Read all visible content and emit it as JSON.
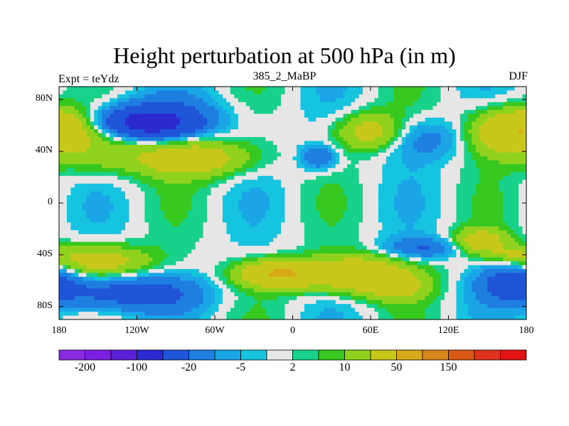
{
  "header": {
    "title": "Height perturbation at 500 hPa (in m)",
    "left_label": "Expt = teYdz",
    "center_label": "385_2_MaBP",
    "right_label": "DJF"
  },
  "chart_data": {
    "type": "heatmap",
    "title": "Height perturbation at 500 hPa (in m)",
    "subtitle": "385_2_MaBP",
    "left_string": "Expt = teYdz",
    "right_string": "DJF",
    "x_ticks": [
      "180",
      "120W",
      "60W",
      "0",
      "60E",
      "120E",
      "180"
    ],
    "x_tick_lon": [
      -180,
      -120,
      -60,
      0,
      60,
      120,
      180
    ],
    "y_ticks": [
      "80N",
      "40N",
      "0",
      "40S",
      "80S"
    ],
    "y_tick_lat": [
      80,
      40,
      0,
      -40,
      -80
    ],
    "xlim": [
      -180,
      180
    ],
    "ylim": [
      -90,
      90
    ],
    "colorbar": {
      "colors": [
        "#8a2be2",
        "#7a1fe0",
        "#5a1fd6",
        "#2a2ad0",
        "#1f55d8",
        "#1e7fe0",
        "#1aa6e6",
        "#16c4e0",
        "#e6e6e6",
        "#19d28a",
        "#36c81e",
        "#8fd21e",
        "#c8c81a",
        "#d8a81a",
        "#d8861a",
        "#d85a14",
        "#e0321e",
        "#e01414"
      ],
      "tick_labels": [
        "-200",
        "-100",
        "-20",
        "-5",
        "2",
        "10",
        "50",
        "150"
      ],
      "tick_index": [
        1,
        3,
        5,
        7,
        9,
        11,
        13,
        15
      ]
    },
    "field": {
      "description_levels": "contour levels in m",
      "blobs": [
        {
          "lon": -105,
          "lat": 65,
          "w": 55,
          "h": 18,
          "v": -20
        },
        {
          "lon": -110,
          "lat": 62,
          "w": 30,
          "h": 10,
          "v": -60
        },
        {
          "lon": -150,
          "lat": 40,
          "w": 30,
          "h": 18,
          "v": 15
        },
        {
          "lon": -80,
          "lat": 35,
          "w": 45,
          "h": 14,
          "v": 35
        },
        {
          "lon": -175,
          "lat": 58,
          "w": 20,
          "h": 14,
          "v": 20
        },
        {
          "lon": 60,
          "lat": 55,
          "w": 25,
          "h": 14,
          "v": 30
        },
        {
          "lon": 100,
          "lat": 50,
          "w": 35,
          "h": 16,
          "v": -15
        },
        {
          "lon": 165,
          "lat": 55,
          "w": 30,
          "h": 18,
          "v": 40
        },
        {
          "lon": 20,
          "lat": 35,
          "w": 14,
          "h": 10,
          "v": -20
        },
        {
          "lon": -150,
          "lat": -45,
          "w": 40,
          "h": 12,
          "v": 30
        },
        {
          "lon": -130,
          "lat": -70,
          "w": 55,
          "h": 14,
          "v": -30
        },
        {
          "lon": -10,
          "lat": -55,
          "w": 30,
          "h": 10,
          "v": 50
        },
        {
          "lon": 50,
          "lat": -55,
          "w": 40,
          "h": 14,
          "v": 40
        },
        {
          "lon": 80,
          "lat": -65,
          "w": 25,
          "h": 10,
          "v": 20
        },
        {
          "lon": 100,
          "lat": -35,
          "w": 30,
          "h": 8,
          "v": -20
        },
        {
          "lon": 145,
          "lat": -30,
          "w": 20,
          "h": 10,
          "v": 30
        },
        {
          "lon": 170,
          "lat": -60,
          "w": 25,
          "h": 14,
          "v": -30
        },
        {
          "lon": 170,
          "lat": -40,
          "w": 15,
          "h": 6,
          "v": 15
        }
      ]
    }
  }
}
